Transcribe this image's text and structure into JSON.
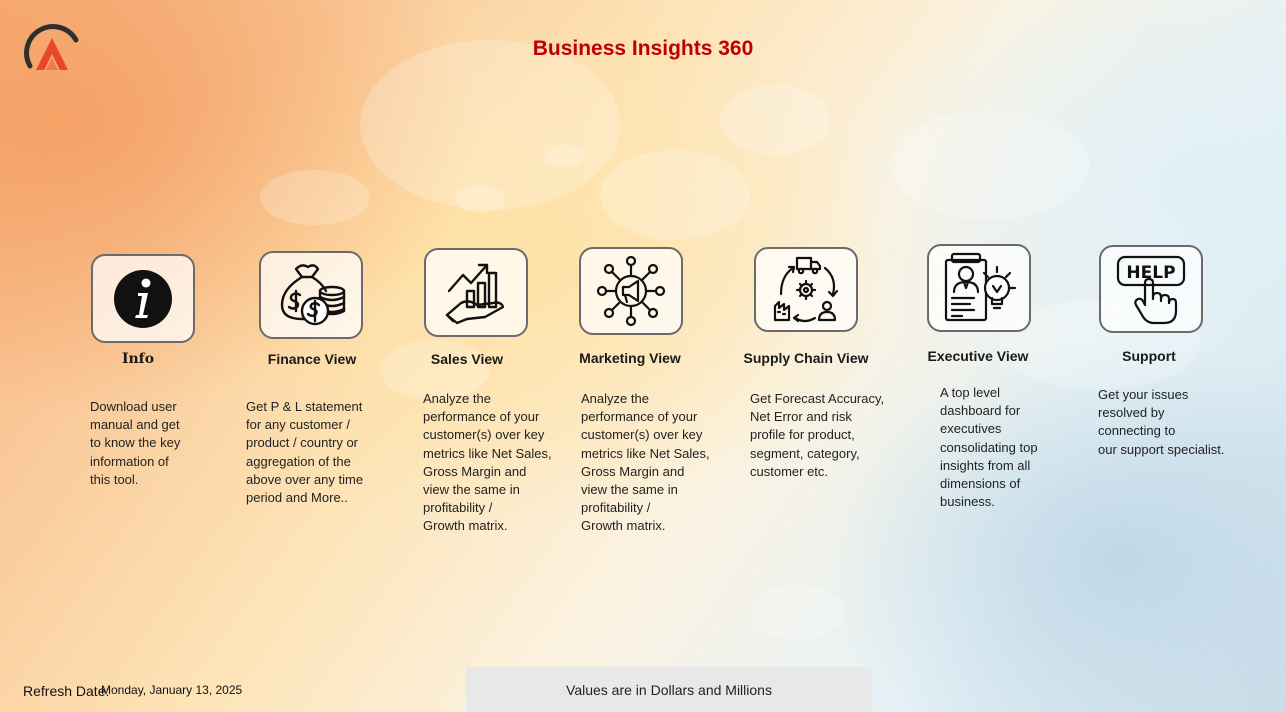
{
  "header": {
    "title": "Business Insights 360"
  },
  "cards": [
    {
      "title": "Info",
      "icon": "info-icon",
      "description": "Download user\nmanual and get\nto know the key\ninformation of\nthis tool."
    },
    {
      "title": "Finance View",
      "icon": "money-bag-icon",
      "description": "Get  P & L statement\nfor any customer /\nproduct / country or\naggregation of the\nabove over any time\nperiod and More.."
    },
    {
      "title": "Sales View",
      "icon": "sales-growth-icon",
      "description": "Analyze the\nperformance of your\ncustomer(s) over key\nmetrics like Net Sales,\nGross Margin and\nview the same in\nprofitability /\nGrowth matrix."
    },
    {
      "title": "Marketing View",
      "icon": "megaphone-network-icon",
      "description": "Analyze the\nperformance of your\ncustomer(s) over key\nmetrics like Net Sales,\nGross Margin and\nview the same in\nprofitability /\nGrowth matrix."
    },
    {
      "title": "Supply Chain View",
      "icon": "supply-chain-cycle-icon",
      "description": "Get Forecast Accuracy,\nNet Error and risk\nprofile for product,\nsegment, category,\ncustomer etc."
    },
    {
      "title": "Executive View",
      "icon": "executive-idea-icon",
      "description": "A top level\ndashboard for\nexecutives\nconsolidating top\ninsights from all\ndimensions of\nbusiness."
    },
    {
      "title": "Support",
      "icon": "help-hand-icon",
      "description": "Get your issues\nresolved by\nconnecting to\nour support specialist."
    }
  ],
  "footer": {
    "refresh_label": "Refresh Date:",
    "refresh_date": "Monday, January 13, 2025",
    "values_note": "Values are in Dollars and Millions"
  },
  "colors": {
    "title": "#c00000",
    "logo_dark": "#2f2f2f",
    "logo_accent": "#e8472c",
    "note_background": "#e8e8e8"
  }
}
